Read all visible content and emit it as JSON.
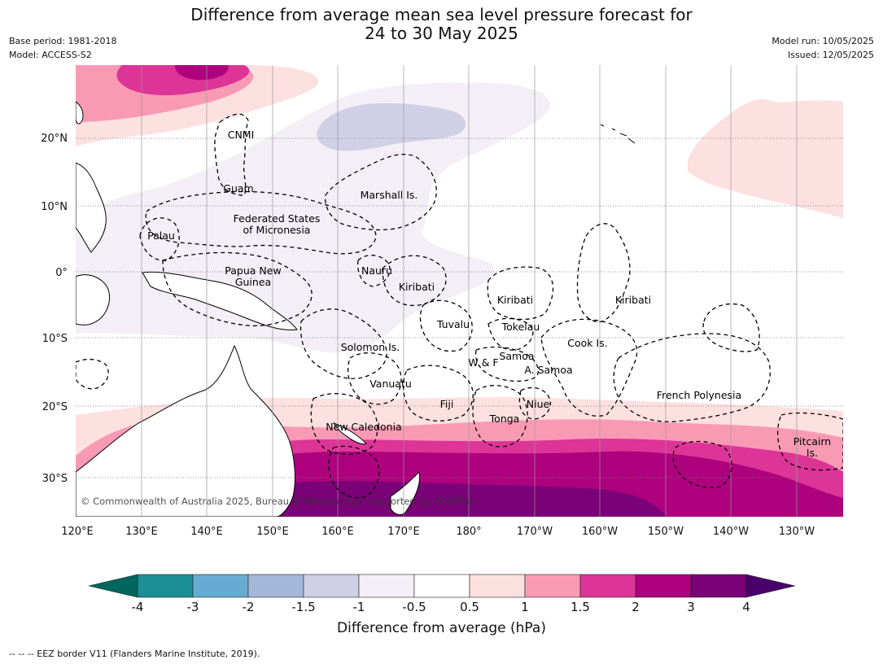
{
  "title_line1": "Difference from average mean sea level pressure forecast for",
  "title_line2": "24 to 30 May 2025",
  "meta_left": {
    "base_period": "Base period: 1981-2018",
    "model": "Model: ACCESS-S2"
  },
  "meta_right": {
    "model_run": "Model run: 10/05/2025",
    "issued": "Issued: 12/05/2025"
  },
  "lon_labels": [
    "120°E",
    "130°E",
    "140°E",
    "150°E",
    "160°E",
    "170°E",
    "180°",
    "170°W",
    "160°W",
    "150°W",
    "140°W",
    "130°W"
  ],
  "lat_labels": [
    "20°N",
    "10°N",
    "0°",
    "10°S",
    "20°S",
    "30°S"
  ],
  "place_labels": {
    "cnmi": "CNMI",
    "guam": "Guam",
    "marshall": "Marshall Is.",
    "fsm1": "Federated States",
    "fsm2": "of Micronesia",
    "palau": "Palau",
    "png1": "Papua New",
    "png2": "Guinea",
    "nauru": "Nauru",
    "kiribati1": "Kiribati",
    "kiribati2": "Kiribati",
    "kiribati3": "Kiribati",
    "tuvalu": "Tuvalu",
    "tokelau": "Tokelau",
    "solomon": "Solomon Is.",
    "samoa": "Samoa",
    "wf": "W & F",
    "asamoa": "A. Samoa",
    "cook": "Cook Is.",
    "vanuatu": "Vanuatu",
    "fiji": "Fiji",
    "niue": "Niue",
    "tonga": "Tonga",
    "frpoly": "French Polynesia",
    "newcal": "New Caledonia",
    "pitcairn1": "Pitcairn",
    "pitcairn2": "Is."
  },
  "copyright": "© Commonwealth of Australia 2025, Bureau of Meteorology, supported by COSPPac",
  "colorbar": {
    "ticks": [
      "-4",
      "-3",
      "-2",
      "-1.5",
      "-1",
      "-0.5",
      "0.5",
      "1",
      "1.5",
      "2",
      "3",
      "4"
    ],
    "colors": [
      "#1a8f96",
      "#67abd3",
      "#a3b8d8",
      "#cfd0e6",
      "#f4eef6",
      "#ffffff",
      "#fde0e0",
      "#f99ab5",
      "#dd3497",
      "#ae017e",
      "#7a0177"
    ],
    "under_color": "#01665e",
    "over_color": "#49006a",
    "label": "Difference from average (hPa)"
  },
  "footer": "--  --  -- EEZ border V11 (Flanders Marine Institute, 2019)."
}
